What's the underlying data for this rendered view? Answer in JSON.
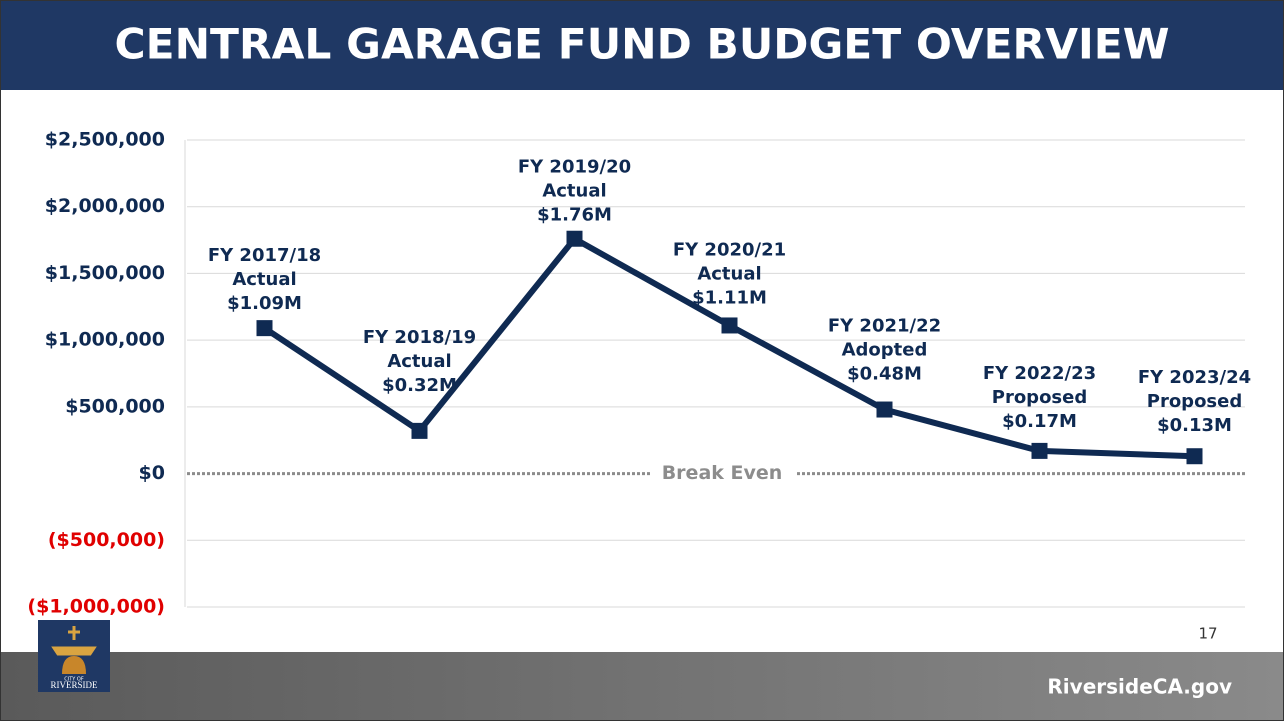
{
  "header": {
    "title": "CENTRAL GARAGE FUND BUDGET OVERVIEW"
  },
  "chart_data": {
    "type": "line",
    "categories": [
      "FY 2017/18",
      "FY 2018/19",
      "FY 2019/20",
      "FY 2020/21",
      "FY 2021/22",
      "FY 2022/23",
      "FY 2023/24"
    ],
    "status_labels": [
      "Actual",
      "Actual",
      "Actual",
      "Actual",
      "Adopted",
      "Proposed",
      "Proposed"
    ],
    "values": [
      1090000,
      320000,
      1760000,
      1110000,
      480000,
      170000,
      130000
    ],
    "value_labels": [
      "$1.09M",
      "$0.32M",
      "$1.76M",
      "$1.11M",
      "$0.48M",
      "$0.17M",
      "$0.13M"
    ],
    "color": "#0f2a52",
    "ylim": [
      -1000000,
      2500000
    ],
    "yticks": [
      {
        "value": -1000000,
        "label": "($1,000,000)"
      },
      {
        "value": -500000,
        "label": "($500,000)"
      },
      {
        "value": 0,
        "label": "$0"
      },
      {
        "value": 500000,
        "label": "$500,000"
      },
      {
        "value": 1000000,
        "label": "$1,000,000"
      },
      {
        "value": 1500000,
        "label": "$1,500,000"
      },
      {
        "value": 2000000,
        "label": "$2,000,000"
      },
      {
        "value": 2500000,
        "label": "$2,500,000"
      }
    ],
    "negative_tick_color": "#e00000",
    "grid": true,
    "annotation": "Break Even"
  },
  "footer": {
    "page_number": "17",
    "website": "RiversideCA.gov",
    "logo_top": "CITY OF",
    "logo_name": "RIVERSIDE"
  }
}
